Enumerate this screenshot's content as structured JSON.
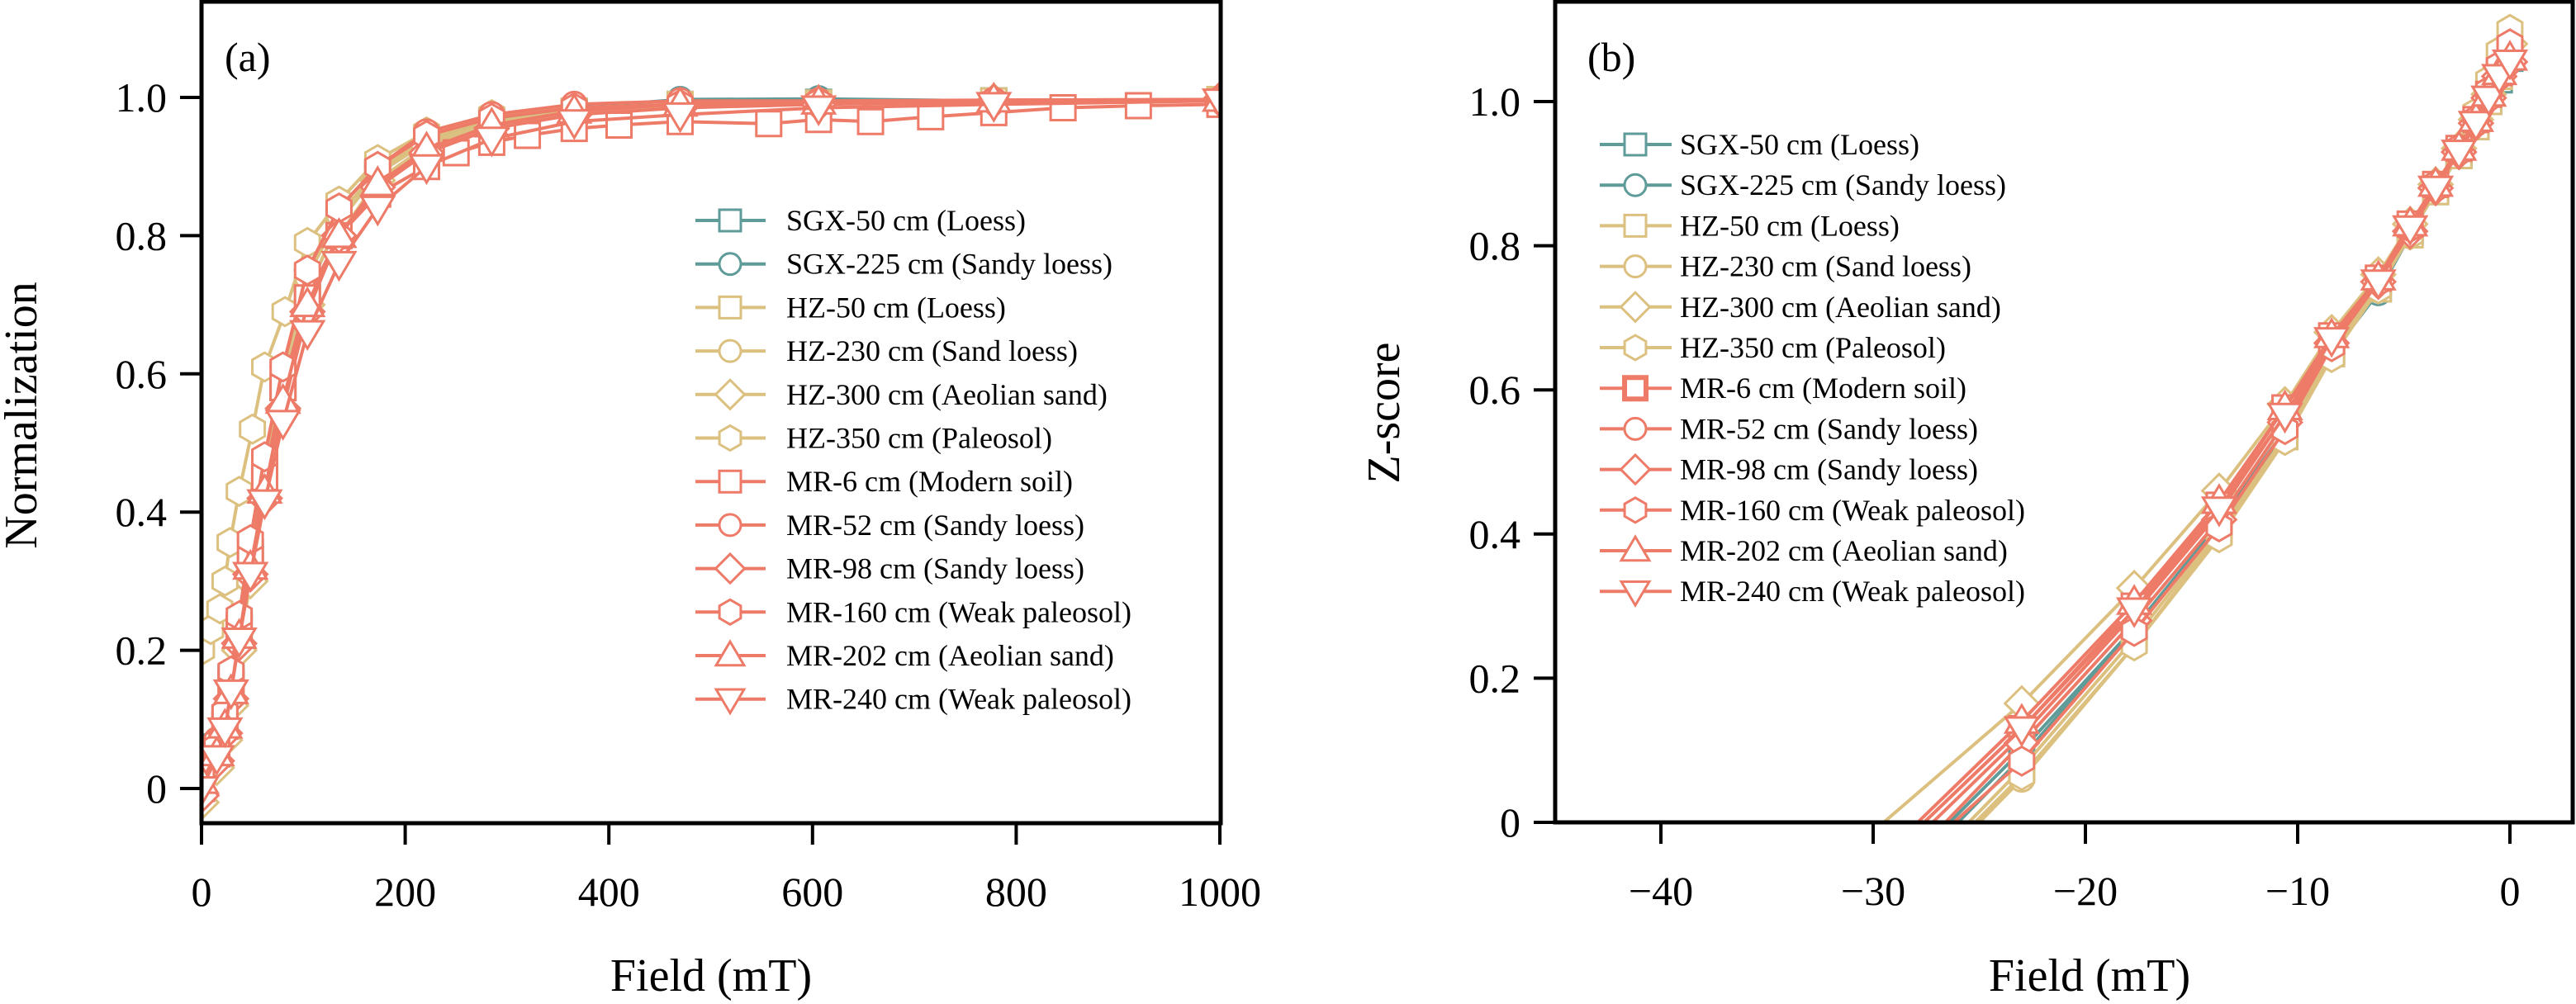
{
  "colors": {
    "SGX": "#5f9b98",
    "HZ": "#dcc07f",
    "MR": "#ee7a68",
    "axis": "#000000"
  },
  "chart_data": [
    {
      "panel": "(a)",
      "type": "line",
      "xlabel": "Field (mT)",
      "ylabel": "Normalization",
      "xlim": [
        0,
        1000
      ],
      "ylim": [
        -0.05,
        1.135
      ],
      "xticks": [
        0,
        200,
        400,
        600,
        800,
        1000
      ],
      "xtick_labels": [
        "0",
        "200",
        "400",
        "600",
        "800",
        "1000"
      ],
      "yticks": [
        0,
        0.2,
        0.4,
        0.6,
        0.8,
        1.0
      ],
      "ytick_labels": [
        "0",
        "0.2",
        "0.4",
        "0.6",
        "0.8",
        "1.0"
      ],
      "legend_position": "center-right",
      "grid": false,
      "series": [
        {
          "name": "SGX-50 cm (Loess)",
          "group": "SGX",
          "marker": "square",
          "x": [
            0,
            15,
            23,
            29,
            37,
            48,
            62,
            80,
            104,
            135,
            173,
            221,
            285,
            366,
            470,
            606,
            778,
            1000
          ],
          "y": [
            0.02,
            0.06,
            0.1,
            0.16,
            0.24,
            0.34,
            0.45,
            0.58,
            0.72,
            0.82,
            0.89,
            0.935,
            0.965,
            0.98,
            0.99,
            0.993,
            0.995,
            0.997
          ]
        },
        {
          "name": "SGX-225 cm (Sandy loess)",
          "group": "SGX",
          "marker": "circle",
          "x": [
            0,
            15,
            23,
            29,
            37,
            48,
            62,
            80,
            104,
            135,
            173,
            221,
            285,
            366,
            470,
            606,
            778,
            1000
          ],
          "y": [
            0.03,
            0.07,
            0.11,
            0.17,
            0.25,
            0.35,
            0.47,
            0.6,
            0.75,
            0.84,
            0.9,
            0.94,
            0.968,
            0.985,
            0.997,
            0.998,
            0.995,
            0.997
          ]
        },
        {
          "name": "HZ-50 cm (Loess)",
          "group": "HZ",
          "marker": "square",
          "x": [
            0,
            15,
            23,
            29,
            37,
            48,
            62,
            80,
            104,
            135,
            173,
            221,
            285,
            366,
            470,
            606,
            778,
            1000
          ],
          "y": [
            0.0,
            0.05,
            0.09,
            0.14,
            0.22,
            0.32,
            0.44,
            0.58,
            0.72,
            0.82,
            0.89,
            0.935,
            0.965,
            0.98,
            0.99,
            0.992,
            0.995,
            0.997
          ]
        },
        {
          "name": "HZ-230 cm (Sand loess)",
          "group": "HZ",
          "marker": "circle",
          "x": [
            0,
            15,
            23,
            29,
            37,
            48,
            62,
            80,
            104,
            135,
            173,
            221,
            285,
            366,
            470,
            606,
            778,
            1000
          ],
          "y": [
            0.01,
            0.06,
            0.1,
            0.15,
            0.23,
            0.34,
            0.46,
            0.6,
            0.74,
            0.83,
            0.895,
            0.94,
            0.97,
            0.985,
            0.99,
            0.993,
            0.996,
            0.997
          ]
        },
        {
          "name": "HZ-300 cm (Aeolian sand)",
          "group": "HZ",
          "marker": "diamond",
          "x": [
            0,
            15,
            23,
            29,
            37,
            48,
            62,
            80,
            104,
            135,
            173,
            221,
            285,
            366,
            470,
            606,
            778,
            1000
          ],
          "y": [
            -0.02,
            0.03,
            0.07,
            0.12,
            0.2,
            0.3,
            0.42,
            0.55,
            0.7,
            0.8,
            0.88,
            0.93,
            0.96,
            0.978,
            0.988,
            0.992,
            0.995,
            0.997
          ]
        },
        {
          "name": "HZ-350 cm (Paleosol)",
          "group": "HZ",
          "marker": "hexagon",
          "x": [
            0,
            9,
            18,
            23,
            28,
            37,
            50,
            62,
            82,
            104,
            135,
            173,
            221,
            285,
            366,
            470,
            606,
            778,
            1000
          ],
          "y": [
            0.2,
            0.23,
            0.26,
            0.3,
            0.356,
            0.43,
            0.52,
            0.61,
            0.69,
            0.79,
            0.85,
            0.91,
            0.95,
            0.975,
            0.985,
            0.99,
            0.993,
            0.995,
            0.997
          ]
        },
        {
          "name": "MR-6 cm (Modern soil)",
          "group": "MR",
          "marker": "square",
          "x": [
            0,
            15,
            23,
            29,
            37,
            48,
            62,
            80,
            104,
            135,
            173,
            221,
            250,
            285,
            320,
            366,
            410,
            470,
            557,
            606,
            657,
            716,
            778,
            846,
            920,
            1000
          ],
          "y": [
            0.0,
            0.05,
            0.09,
            0.15,
            0.23,
            0.33,
            0.45,
            0.58,
            0.71,
            0.8,
            0.86,
            0.9,
            0.92,
            0.935,
            0.945,
            0.955,
            0.96,
            0.965,
            0.962,
            0.968,
            0.965,
            0.972,
            0.978,
            0.985,
            0.988,
            0.99
          ]
        },
        {
          "name": "MR-52 cm (Sandy loess)",
          "group": "MR",
          "marker": "circle",
          "x": [
            0,
            15,
            23,
            29,
            37,
            48,
            62,
            80,
            104,
            135,
            173,
            221,
            285,
            366,
            470,
            606,
            778,
            1000
          ],
          "y": [
            0.03,
            0.07,
            0.11,
            0.17,
            0.25,
            0.36,
            0.48,
            0.61,
            0.75,
            0.84,
            0.9,
            0.95,
            0.975,
            0.99,
            0.995,
            0.995,
            0.996,
            0.997
          ]
        },
        {
          "name": "MR-98 cm (Sandy loess)",
          "group": "MR",
          "marker": "diamond",
          "x": [
            0,
            15,
            23,
            29,
            37,
            48,
            62,
            80,
            104,
            135,
            173,
            221,
            285,
            366,
            470,
            606,
            778,
            1000
          ],
          "y": [
            -0.01,
            0.04,
            0.08,
            0.13,
            0.21,
            0.31,
            0.42,
            0.55,
            0.69,
            0.8,
            0.87,
            0.92,
            0.955,
            0.975,
            0.985,
            0.99,
            0.994,
            0.997
          ]
        },
        {
          "name": "MR-160 cm (Weak paleosol)",
          "group": "MR",
          "marker": "hexagon",
          "x": [
            0,
            15,
            23,
            29,
            37,
            48,
            62,
            80,
            104,
            135,
            173,
            221,
            285,
            366,
            470,
            606,
            778,
            1000
          ],
          "y": [
            0.02,
            0.06,
            0.11,
            0.17,
            0.25,
            0.36,
            0.48,
            0.61,
            0.75,
            0.84,
            0.9,
            0.945,
            0.97,
            0.985,
            0.99,
            0.993,
            0.995,
            0.997
          ]
        },
        {
          "name": "MR-202 cm (Aeolian sand)",
          "group": "MR",
          "marker": "triangle-up",
          "x": [
            0,
            15,
            23,
            29,
            37,
            48,
            62,
            80,
            104,
            135,
            173,
            221,
            285,
            366,
            470,
            606,
            778,
            1000
          ],
          "y": [
            0.01,
            0.05,
            0.09,
            0.14,
            0.22,
            0.32,
            0.43,
            0.56,
            0.7,
            0.8,
            0.875,
            0.925,
            0.96,
            0.98,
            0.99,
            0.993,
            0.996,
            0.997
          ]
        },
        {
          "name": "MR-240 cm (Weak paleosol)",
          "group": "MR",
          "marker": "triangle-down",
          "x": [
            0,
            15,
            23,
            29,
            37,
            48,
            62,
            80,
            104,
            135,
            173,
            221,
            285,
            366,
            470,
            606,
            778,
            1000
          ],
          "y": [
            0.0,
            0.045,
            0.085,
            0.14,
            0.215,
            0.31,
            0.415,
            0.53,
            0.66,
            0.76,
            0.84,
            0.9,
            0.94,
            0.965,
            0.975,
            0.985,
            0.99,
            0.995
          ]
        }
      ]
    },
    {
      "panel": "(b)",
      "type": "line",
      "xlabel": "Field (mT)",
      "ylabel": "Z-score",
      "xlim": [
        -45,
        3
      ],
      "ylim": [
        0,
        1.135
      ],
      "xticks": [
        -40,
        -30,
        -20,
        -10,
        0
      ],
      "xtick_labels": [
        "−40",
        "−30",
        "−20",
        "−10",
        "0"
      ],
      "yticks": [
        0,
        0.2,
        0.4,
        0.6,
        0.8,
        1.0
      ],
      "ytick_labels": [
        "0",
        "0.2",
        "0.4",
        "0.6",
        "0.8",
        "1.0"
      ],
      "legend_position": "upper-left",
      "grid": false,
      "series": [
        {
          "name": "SGX-50 cm (Loess)",
          "group": "SGX",
          "marker": "square",
          "x": [
            -26.0,
            -23,
            -17.7,
            -13.7,
            -10.6,
            -8.4,
            -6.2,
            -4.7,
            -3.5,
            -2.4,
            -1.6,
            -1.0,
            -0.5,
            0
          ],
          "y": [
            0,
            0.09,
            0.27,
            0.415,
            0.545,
            0.655,
            0.74,
            0.82,
            0.875,
            0.925,
            0.965,
            1.0,
            1.03,
            1.06
          ]
        },
        {
          "name": "SGX-225 cm (Sandy loess)",
          "group": "SGX",
          "marker": "circle",
          "x": [
            -26.4,
            -23,
            -17.7,
            -13.7,
            -10.6,
            -8.4,
            -6.2,
            -4.7,
            -3.5,
            -2.4,
            -1.6,
            -1.0,
            -0.5,
            0
          ],
          "y": [
            0,
            0.1,
            0.27,
            0.41,
            0.54,
            0.65,
            0.735,
            0.815,
            0.875,
            0.93,
            0.97,
            1.0,
            1.04,
            1.07
          ]
        },
        {
          "name": "HZ-50 cm (Loess)",
          "group": "HZ",
          "marker": "square",
          "x": [
            -25.5,
            -23,
            -17.7,
            -13.7,
            -10.6,
            -8.4,
            -6.2,
            -4.7,
            -3.5,
            -2.4,
            -1.6,
            -1.0,
            -0.5,
            0
          ],
          "y": [
            0,
            0.075,
            0.255,
            0.405,
            0.535,
            0.65,
            0.74,
            0.815,
            0.875,
            0.925,
            0.965,
            1.0,
            1.035,
            1.065
          ]
        },
        {
          "name": "HZ-230 cm (Sand loess)",
          "group": "HZ",
          "marker": "circle",
          "x": [
            -25.0,
            -23,
            -17.7,
            -13.7,
            -10.6,
            -8.4,
            -6.2,
            -4.7,
            -3.5,
            -2.4,
            -1.6,
            -1.0,
            -0.5,
            0
          ],
          "y": [
            0,
            0.06,
            0.245,
            0.4,
            0.535,
            0.655,
            0.745,
            0.82,
            0.88,
            0.93,
            0.97,
            1.005,
            1.04,
            1.07
          ]
        },
        {
          "name": "HZ-300 cm (Aeolian sand)",
          "group": "HZ",
          "marker": "diamond",
          "x": [
            -29.5,
            -23,
            -17.7,
            -13.7,
            -10.6,
            -8.4,
            -6.2,
            -4.7,
            -3.5,
            -2.4,
            -1.6,
            -1.0,
            -0.5,
            0
          ],
          "y": [
            0,
            0.165,
            0.325,
            0.46,
            0.58,
            0.68,
            0.76,
            0.83,
            0.885,
            0.935,
            0.975,
            1.01,
            1.045,
            1.08
          ]
        },
        {
          "name": "HZ-350 cm (Paleosol)",
          "group": "HZ",
          "marker": "hexagon",
          "x": [
            -25.2,
            -23,
            -17.7,
            -13.7,
            -10.6,
            -8.4,
            -6.2,
            -4.7,
            -3.5,
            -2.4,
            -1.6,
            -1.0,
            -0.5,
            0
          ],
          "y": [
            0,
            0.065,
            0.245,
            0.395,
            0.53,
            0.645,
            0.74,
            0.815,
            0.88,
            0.935,
            0.985,
            1.03,
            1.07,
            1.1
          ]
        },
        {
          "name": "MR-6 cm (Modern soil)",
          "group": "MR",
          "marker": "square-bold",
          "x": [
            -27.6,
            -23,
            -17.7,
            -13.7,
            -10.6,
            -8.4,
            -6.2,
            -4.7,
            -3.5,
            -2.4,
            -1.6,
            -1.0,
            -0.5,
            0
          ],
          "y": [
            0,
            0.13,
            0.3,
            0.44,
            0.575,
            0.675,
            0.755,
            0.83,
            0.885,
            0.935,
            0.975,
            1.01,
            1.04,
            1.065
          ]
        },
        {
          "name": "MR-52 cm (Sandy loess)",
          "group": "MR",
          "marker": "circle",
          "x": [
            -27.2,
            -23,
            -17.7,
            -13.7,
            -10.6,
            -8.4,
            -6.2,
            -4.7,
            -3.5,
            -2.4,
            -1.6,
            -1.0,
            -0.5,
            0
          ],
          "y": [
            0,
            0.12,
            0.29,
            0.43,
            0.565,
            0.67,
            0.75,
            0.825,
            0.88,
            0.93,
            0.97,
            1.005,
            1.035,
            1.06
          ]
        },
        {
          "name": "MR-98 cm (Sandy loess)",
          "group": "MR",
          "marker": "diamond",
          "x": [
            -26.6,
            -23,
            -17.7,
            -13.7,
            -10.6,
            -8.4,
            -6.2,
            -4.7,
            -3.5,
            -2.4,
            -1.6,
            -1.0,
            -0.5,
            0
          ],
          "y": [
            0,
            0.11,
            0.28,
            0.42,
            0.555,
            0.665,
            0.75,
            0.82,
            0.88,
            0.93,
            0.97,
            1.005,
            1.035,
            1.055
          ]
        },
        {
          "name": "MR-160 cm (Weak paleosol)",
          "group": "MR",
          "marker": "hexagon",
          "x": [
            -26.2,
            -23,
            -17.7,
            -13.7,
            -10.6,
            -8.4,
            -6.2,
            -4.7,
            -3.5,
            -2.4,
            -1.6,
            -1.0,
            -0.5,
            0
          ],
          "y": [
            0,
            0.085,
            0.265,
            0.41,
            0.545,
            0.66,
            0.75,
            0.825,
            0.885,
            0.935,
            0.975,
            1.015,
            1.05,
            1.08
          ]
        },
        {
          "name": "MR-202 cm (Aeolian sand)",
          "group": "MR",
          "marker": "triangle-up",
          "x": [
            -27.9,
            -23,
            -17.7,
            -13.7,
            -10.6,
            -8.4,
            -6.2,
            -4.7,
            -3.5,
            -2.4,
            -1.6,
            -1.0,
            -0.5,
            0
          ],
          "y": [
            0,
            0.14,
            0.305,
            0.445,
            0.575,
            0.675,
            0.755,
            0.83,
            0.885,
            0.935,
            0.975,
            1.01,
            1.04,
            1.06
          ]
        },
        {
          "name": "MR-240 cm (Weak paleosol)",
          "group": "MR",
          "marker": "triangle-down",
          "x": [
            -27.6,
            -23,
            -17.7,
            -13.7,
            -10.6,
            -8.4,
            -6.2,
            -4.7,
            -3.5,
            -2.4,
            -1.6,
            -1.0,
            -0.5,
            0
          ],
          "y": [
            0,
            0.13,
            0.295,
            0.435,
            0.565,
            0.67,
            0.75,
            0.825,
            0.88,
            0.93,
            0.97,
            1.005,
            1.035,
            1.055
          ]
        }
      ]
    }
  ]
}
